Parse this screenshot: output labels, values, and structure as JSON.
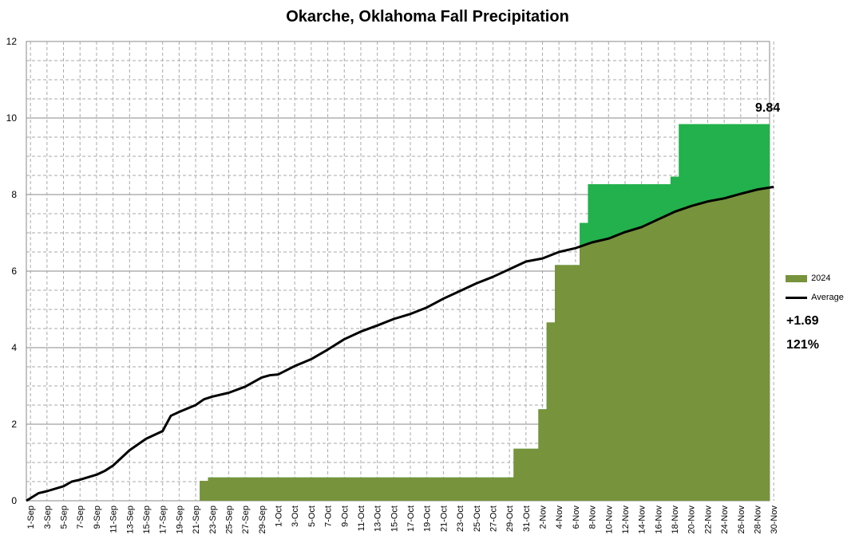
{
  "chart_data": {
    "type": "area",
    "title": "Okarche, Oklahoma Fall Precipitation",
    "xlabel": "",
    "ylabel": "",
    "ylim": [
      0,
      12
    ],
    "yticks": [
      0,
      2,
      4,
      6,
      8,
      10,
      12
    ],
    "x_start": "1-Sep",
    "x_end": "30-Nov",
    "x_tick_labels": [
      "1-Sep",
      "3-Sep",
      "5-Sep",
      "7-Sep",
      "9-Sep",
      "11-Sep",
      "13-Sep",
      "15-Sep",
      "17-Sep",
      "19-Sep",
      "21-Sep",
      "23-Sep",
      "25-Sep",
      "27-Sep",
      "29-Sep",
      "1-Oct",
      "3-Oct",
      "5-Oct",
      "7-Oct",
      "9-Oct",
      "11-Oct",
      "13-Oct",
      "15-Oct",
      "17-Oct",
      "19-Oct",
      "21-Oct",
      "23-Oct",
      "25-Oct",
      "27-Oct",
      "29-Oct",
      "31-Oct",
      "2-Nov",
      "4-Nov",
      "6-Nov",
      "8-Nov",
      "10-Nov",
      "12-Nov",
      "14-Nov",
      "16-Nov",
      "18-Nov",
      "20-Nov",
      "22-Nov",
      "24-Nov",
      "26-Nov",
      "28-Nov",
      "30-Nov"
    ],
    "grid": true,
    "legend_position": "right",
    "series": [
      {
        "name": "2024",
        "type": "step-area",
        "color_below_average": "#77933c",
        "color_above_average": "#22b14c",
        "steps": [
          {
            "date": "1-Sep",
            "value": 0
          },
          {
            "date": "22-Sep",
            "value": 0.52
          },
          {
            "date": "23-Sep",
            "value": 0.61
          },
          {
            "date": "30-Oct",
            "value": 1.36
          },
          {
            "date": "2-Nov",
            "value": 2.39
          },
          {
            "date": "3-Nov",
            "value": 4.66
          },
          {
            "date": "4-Nov",
            "value": 6.16
          },
          {
            "date": "7-Nov",
            "value": 7.26
          },
          {
            "date": "8-Nov",
            "value": 8.27
          },
          {
            "date": "18-Nov",
            "value": 8.47
          },
          {
            "date": "19-Nov",
            "value": 9.84
          }
        ]
      },
      {
        "name": "Average",
        "type": "line",
        "color": "#000000",
        "points": [
          {
            "date": "1-Sep",
            "value": 0.0
          },
          {
            "date": "2-Sep",
            "value": 0.2
          },
          {
            "date": "3-Sep",
            "value": 0.25
          },
          {
            "date": "5-Sep",
            "value": 0.38
          },
          {
            "date": "6-Sep",
            "value": 0.5
          },
          {
            "date": "7-Sep",
            "value": 0.55
          },
          {
            "date": "9-Sep",
            "value": 0.68
          },
          {
            "date": "10-Sep",
            "value": 0.78
          },
          {
            "date": "11-Sep",
            "value": 0.92
          },
          {
            "date": "13-Sep",
            "value": 1.32
          },
          {
            "date": "15-Sep",
            "value": 1.62
          },
          {
            "date": "17-Sep",
            "value": 1.82
          },
          {
            "date": "18-Sep",
            "value": 2.22
          },
          {
            "date": "19-Sep",
            "value": 2.32
          },
          {
            "date": "21-Sep",
            "value": 2.5
          },
          {
            "date": "22-Sep",
            "value": 2.65
          },
          {
            "date": "23-Sep",
            "value": 2.72
          },
          {
            "date": "25-Sep",
            "value": 2.82
          },
          {
            "date": "27-Sep",
            "value": 2.98
          },
          {
            "date": "29-Sep",
            "value": 3.22
          },
          {
            "date": "30-Sep",
            "value": 3.28
          },
          {
            "date": "1-Oct",
            "value": 3.3
          },
          {
            "date": "3-Oct",
            "value": 3.52
          },
          {
            "date": "5-Oct",
            "value": 3.7
          },
          {
            "date": "7-Oct",
            "value": 3.95
          },
          {
            "date": "9-Oct",
            "value": 4.22
          },
          {
            "date": "11-Oct",
            "value": 4.42
          },
          {
            "date": "13-Oct",
            "value": 4.58
          },
          {
            "date": "15-Oct",
            "value": 4.75
          },
          {
            "date": "17-Oct",
            "value": 4.88
          },
          {
            "date": "19-Oct",
            "value": 5.05
          },
          {
            "date": "21-Oct",
            "value": 5.28
          },
          {
            "date": "23-Oct",
            "value": 5.48
          },
          {
            "date": "25-Oct",
            "value": 5.68
          },
          {
            "date": "27-Oct",
            "value": 5.85
          },
          {
            "date": "29-Oct",
            "value": 6.05
          },
          {
            "date": "31-Oct",
            "value": 6.25
          },
          {
            "date": "2-Nov",
            "value": 6.33
          },
          {
            "date": "4-Nov",
            "value": 6.5
          },
          {
            "date": "6-Nov",
            "value": 6.6
          },
          {
            "date": "8-Nov",
            "value": 6.75
          },
          {
            "date": "10-Nov",
            "value": 6.85
          },
          {
            "date": "12-Nov",
            "value": 7.02
          },
          {
            "date": "14-Nov",
            "value": 7.15
          },
          {
            "date": "16-Nov",
            "value": 7.35
          },
          {
            "date": "18-Nov",
            "value": 7.55
          },
          {
            "date": "20-Nov",
            "value": 7.7
          },
          {
            "date": "22-Nov",
            "value": 7.82
          },
          {
            "date": "24-Nov",
            "value": 7.9
          },
          {
            "date": "26-Nov",
            "value": 8.02
          },
          {
            "date": "28-Nov",
            "value": 8.13
          },
          {
            "date": "30-Nov",
            "value": 8.2
          }
        ]
      }
    ],
    "annotations": {
      "final_total": "9.84",
      "departure": "+1.69",
      "percent_of_normal": "121%"
    }
  },
  "legend": {
    "items": [
      {
        "label": "2024",
        "color": "#77933c",
        "kind": "swatch"
      },
      {
        "label": "Average",
        "color": "#000000",
        "kind": "line"
      }
    ]
  }
}
